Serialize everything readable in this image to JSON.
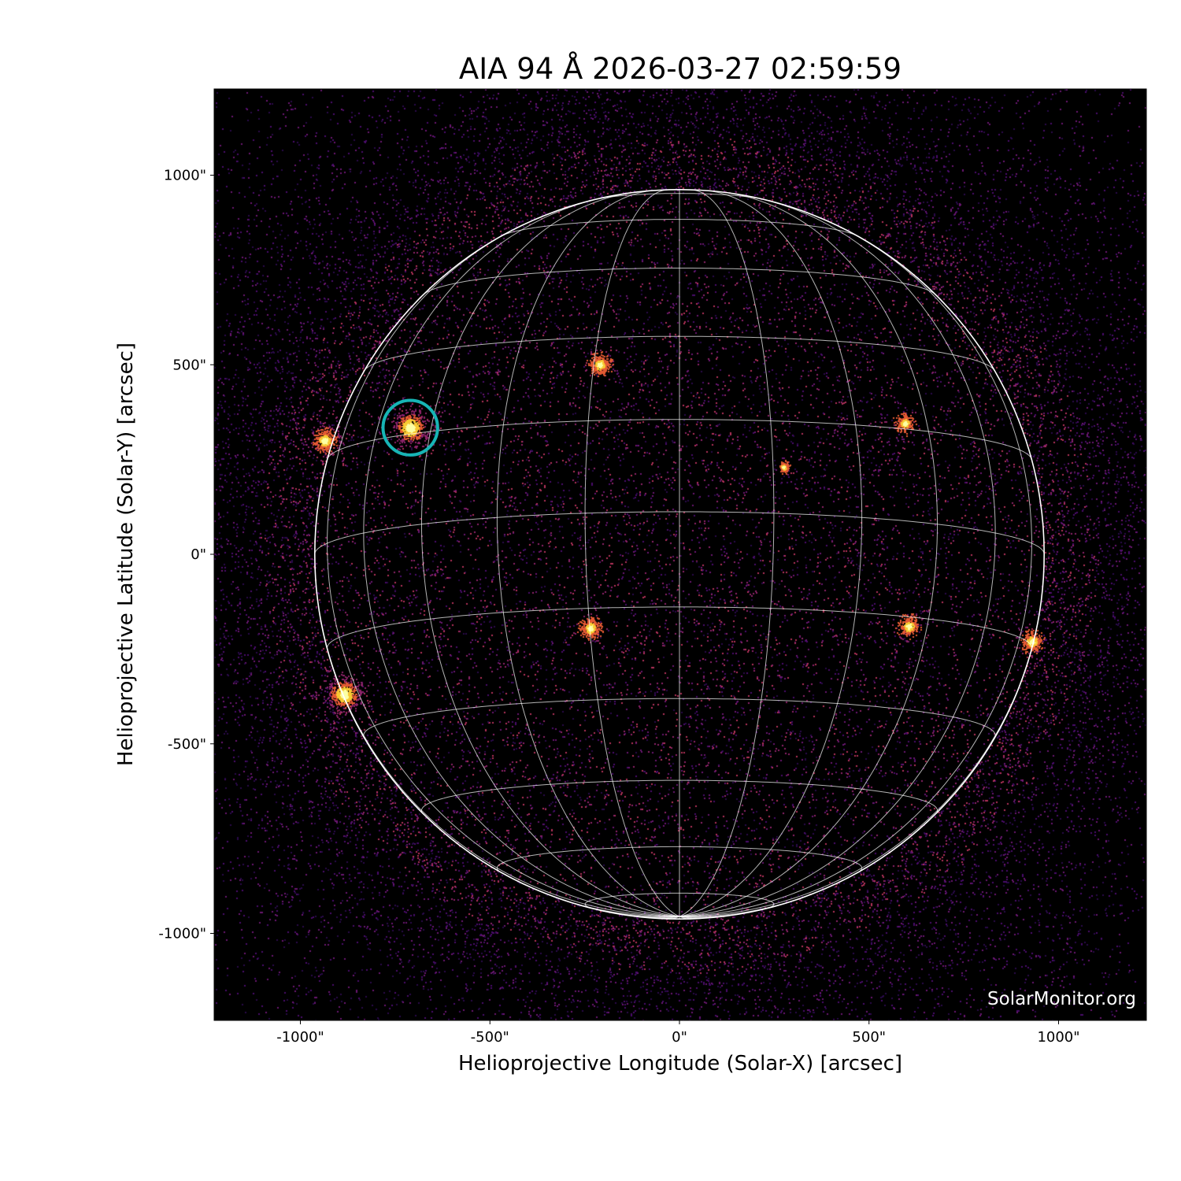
{
  "chart_data": {
    "type": "heatmap",
    "title": "AIA 94 Å 2026-03-27 02:59:59",
    "xlabel": "Helioprojective Longitude (Solar-X) [arcsec]",
    "ylabel": "Helioprojective Latitude (Solar-Y) [arcsec]",
    "xlim": [
      -1228,
      1230
    ],
    "ylim": [
      -1228,
      1228
    ],
    "x_ticks": [
      -1000,
      -500,
      0,
      500,
      1000
    ],
    "x_tick_labels": [
      "-1000\"",
      "-500\"",
      "0\"",
      "500\"",
      "1000\""
    ],
    "y_ticks": [
      1000,
      500,
      0,
      -500,
      -1000
    ],
    "y_tick_labels": [
      "1000\"",
      "500\"",
      "0\"",
      "-500\"",
      "-1000\""
    ],
    "colormap": "inferno",
    "solar_radius_arcsec": 962,
    "grid_spacing_deg": 15,
    "b0_deg": -6.7,
    "grid_color": "#ffffff",
    "active_regions": [
      {
        "x": -710,
        "y": 334,
        "intensity": 1.0
      },
      {
        "x": -935,
        "y": 300,
        "intensity": 0.7
      },
      {
        "x": -885,
        "y": -370,
        "intensity": 0.95
      },
      {
        "x": -210,
        "y": 500,
        "intensity": 0.6
      },
      {
        "x": -235,
        "y": -195,
        "intensity": 0.6
      },
      {
        "x": 605,
        "y": -190,
        "intensity": 0.6
      },
      {
        "x": 595,
        "y": 345,
        "intensity": 0.5
      },
      {
        "x": 930,
        "y": -230,
        "intensity": 0.6
      },
      {
        "x": 275,
        "y": 230,
        "intensity": 0.3
      }
    ],
    "marker": {
      "x": -710,
      "y": 334,
      "radius_arcsec": 72,
      "color": "#17b5b5"
    },
    "watermark": "SolarMonitor.org",
    "grid": true
  }
}
